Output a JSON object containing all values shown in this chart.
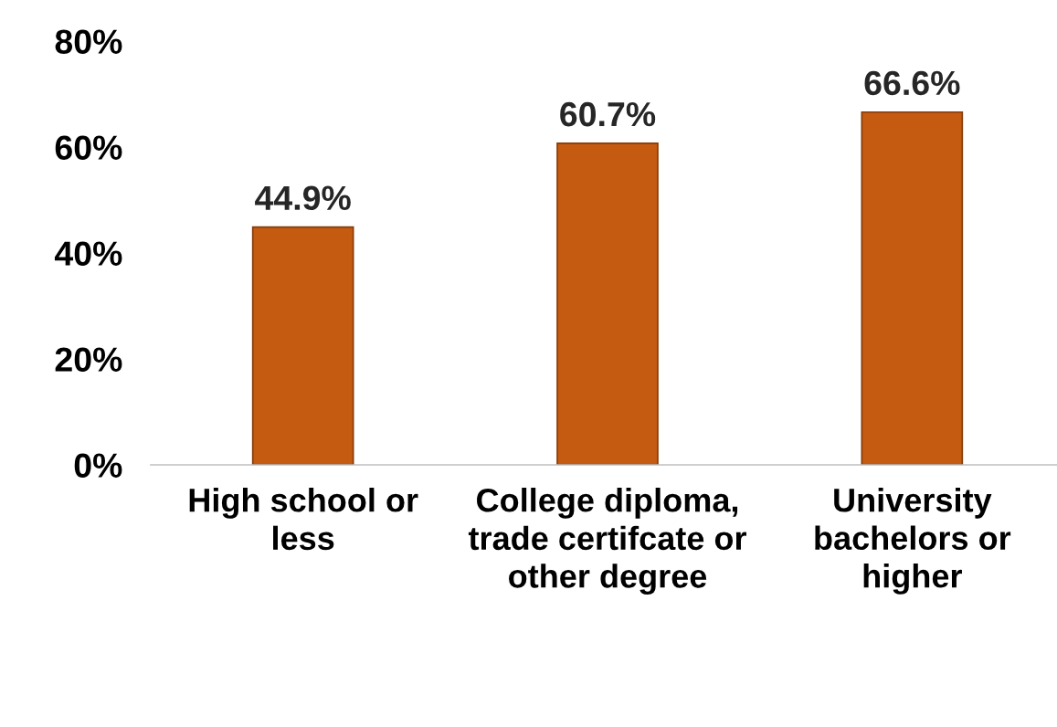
{
  "chart_data": {
    "type": "bar",
    "categories": [
      "High school or less",
      "College diploma, trade certifcate or other degree",
      "University bachelors or higher"
    ],
    "values": [
      44.9,
      60.7,
      66.6
    ],
    "value_labels": [
      "44.9%",
      "60.7%",
      "66.6%"
    ],
    "color": "#c55a11",
    "ylim": [
      0,
      80
    ],
    "yticks": [
      {
        "value": 0,
        "label": "0%"
      },
      {
        "value": 20,
        "label": "20%"
      },
      {
        "value": 40,
        "label": "40%"
      },
      {
        "value": 60,
        "label": "60%"
      },
      {
        "value": 80,
        "label": "80%"
      }
    ],
    "grid": false,
    "legend": false
  }
}
